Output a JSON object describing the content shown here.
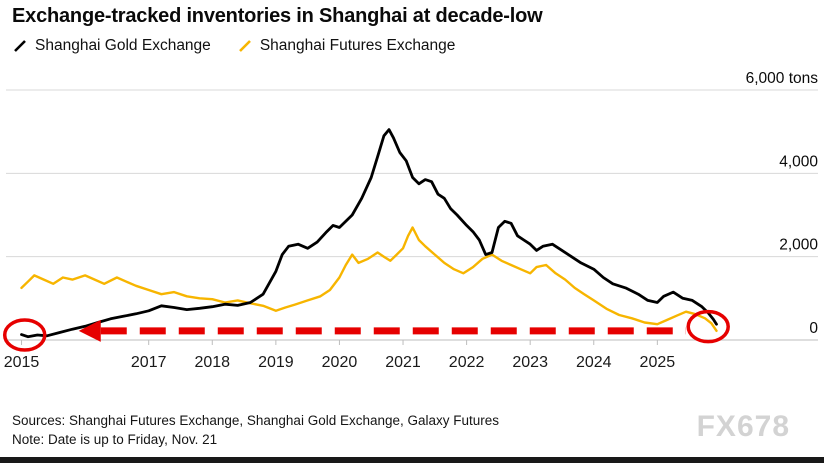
{
  "title": "Exchange-tracked inventories in Shanghai at decade-low",
  "legend": [
    {
      "label": "Shanghai Gold Exchange",
      "color": "#000000"
    },
    {
      "label": "Shanghai Futures Exchange",
      "color": "#f7b500"
    }
  ],
  "footer": {
    "sources": "Sources: Shanghai Futures Exchange, Shanghai Gold Exchange, Galaxy Futures",
    "note": "Note: Date is up to Friday, Nov. 21"
  },
  "watermark": "FX678",
  "chart_data": {
    "type": "line",
    "title": "Exchange-tracked inventories in Shanghai at decade-low",
    "xlabel": "",
    "ylabel": "tons",
    "grid": true,
    "legend_position": "top-left",
    "xlim": [
      2014.85,
      2026.3
    ],
    "ylim": [
      0,
      6000
    ],
    "y_ticks": [
      0,
      2000,
      4000,
      6000
    ],
    "y_tick_labels": [
      "0",
      "2,000",
      "4,000",
      "6,000 tons"
    ],
    "x_ticks": [
      2015,
      2017,
      2018,
      2019,
      2020,
      2021,
      2022,
      2023,
      2024,
      2025
    ],
    "series": [
      {
        "name": "Shanghai Futures Exchange",
        "color": "#f7b500",
        "width": 2.4,
        "points": [
          [
            2015,
            1250
          ],
          [
            2015.1,
            1400
          ],
          [
            2015.2,
            1550
          ],
          [
            2015.35,
            1450
          ],
          [
            2015.5,
            1350
          ],
          [
            2015.65,
            1500
          ],
          [
            2015.8,
            1450
          ],
          [
            2016,
            1550
          ],
          [
            2016.15,
            1450
          ],
          [
            2016.3,
            1350
          ],
          [
            2016.5,
            1500
          ],
          [
            2016.65,
            1400
          ],
          [
            2016.8,
            1300
          ],
          [
            2017,
            1200
          ],
          [
            2017.2,
            1100
          ],
          [
            2017.4,
            1150
          ],
          [
            2017.6,
            1050
          ],
          [
            2017.8,
            1000
          ],
          [
            2018,
            980
          ],
          [
            2018.2,
            900
          ],
          [
            2018.4,
            950
          ],
          [
            2018.6,
            880
          ],
          [
            2018.8,
            820
          ],
          [
            2019,
            700
          ],
          [
            2019.15,
            780
          ],
          [
            2019.3,
            850
          ],
          [
            2019.5,
            950
          ],
          [
            2019.7,
            1050
          ],
          [
            2019.85,
            1200
          ],
          [
            2020,
            1500
          ],
          [
            2020.1,
            1800
          ],
          [
            2020.2,
            2050
          ],
          [
            2020.3,
            1850
          ],
          [
            2020.45,
            1950
          ],
          [
            2020.6,
            2100
          ],
          [
            2020.7,
            2000
          ],
          [
            2020.8,
            1900
          ],
          [
            2020.9,
            2050
          ],
          [
            2021,
            2200
          ],
          [
            2021.08,
            2500
          ],
          [
            2021.15,
            2700
          ],
          [
            2021.25,
            2400
          ],
          [
            2021.35,
            2250
          ],
          [
            2021.5,
            2050
          ],
          [
            2021.65,
            1850
          ],
          [
            2021.8,
            1700
          ],
          [
            2021.95,
            1600
          ],
          [
            2022.1,
            1750
          ],
          [
            2022.25,
            1950
          ],
          [
            2022.4,
            2050
          ],
          [
            2022.55,
            1900
          ],
          [
            2022.7,
            1800
          ],
          [
            2022.85,
            1700
          ],
          [
            2023,
            1600
          ],
          [
            2023.1,
            1750
          ],
          [
            2023.25,
            1800
          ],
          [
            2023.4,
            1600
          ],
          [
            2023.55,
            1450
          ],
          [
            2023.7,
            1250
          ],
          [
            2023.85,
            1100
          ],
          [
            2024,
            950
          ],
          [
            2024.2,
            750
          ],
          [
            2024.4,
            600
          ],
          [
            2024.6,
            520
          ],
          [
            2024.8,
            420
          ],
          [
            2025,
            380
          ],
          [
            2025.15,
            480
          ],
          [
            2025.3,
            580
          ],
          [
            2025.45,
            680
          ],
          [
            2025.6,
            620
          ],
          [
            2025.75,
            520
          ],
          [
            2025.85,
            400
          ],
          [
            2025.93,
            220
          ]
        ]
      },
      {
        "name": "Shanghai Gold Exchange",
        "color": "#000000",
        "width": 2.8,
        "points": [
          [
            2015,
            130
          ],
          [
            2015.1,
            80
          ],
          [
            2015.25,
            120
          ],
          [
            2015.4,
            100
          ],
          [
            2015.6,
            180
          ],
          [
            2015.8,
            260
          ],
          [
            2016,
            330
          ],
          [
            2016.2,
            420
          ],
          [
            2016.4,
            510
          ],
          [
            2016.6,
            570
          ],
          [
            2016.8,
            630
          ],
          [
            2017,
            700
          ],
          [
            2017.2,
            820
          ],
          [
            2017.4,
            780
          ],
          [
            2017.6,
            730
          ],
          [
            2017.8,
            760
          ],
          [
            2018,
            800
          ],
          [
            2018.2,
            860
          ],
          [
            2018.4,
            830
          ],
          [
            2018.6,
            900
          ],
          [
            2018.8,
            1100
          ],
          [
            2019,
            1650
          ],
          [
            2019.1,
            2050
          ],
          [
            2019.2,
            2250
          ],
          [
            2019.35,
            2300
          ],
          [
            2019.5,
            2200
          ],
          [
            2019.65,
            2350
          ],
          [
            2019.8,
            2600
          ],
          [
            2019.9,
            2750
          ],
          [
            2020,
            2700
          ],
          [
            2020.1,
            2850
          ],
          [
            2020.2,
            3000
          ],
          [
            2020.35,
            3400
          ],
          [
            2020.5,
            3900
          ],
          [
            2020.6,
            4400
          ],
          [
            2020.7,
            4900
          ],
          [
            2020.78,
            5050
          ],
          [
            2020.85,
            4850
          ],
          [
            2020.95,
            4500
          ],
          [
            2021.05,
            4300
          ],
          [
            2021.15,
            3900
          ],
          [
            2021.25,
            3750
          ],
          [
            2021.35,
            3850
          ],
          [
            2021.45,
            3800
          ],
          [
            2021.55,
            3500
          ],
          [
            2021.65,
            3400
          ],
          [
            2021.75,
            3150
          ],
          [
            2021.85,
            3000
          ],
          [
            2022,
            2750
          ],
          [
            2022.1,
            2600
          ],
          [
            2022.2,
            2400
          ],
          [
            2022.3,
            2050
          ],
          [
            2022.4,
            2100
          ],
          [
            2022.5,
            2700
          ],
          [
            2022.6,
            2850
          ],
          [
            2022.7,
            2800
          ],
          [
            2022.8,
            2500
          ],
          [
            2022.9,
            2400
          ],
          [
            2023,
            2300
          ],
          [
            2023.1,
            2150
          ],
          [
            2023.2,
            2250
          ],
          [
            2023.35,
            2300
          ],
          [
            2023.5,
            2150
          ],
          [
            2023.65,
            2000
          ],
          [
            2023.8,
            1850
          ],
          [
            2024,
            1700
          ],
          [
            2024.15,
            1500
          ],
          [
            2024.3,
            1350
          ],
          [
            2024.5,
            1250
          ],
          [
            2024.7,
            1100
          ],
          [
            2024.85,
            950
          ],
          [
            2025,
            900
          ],
          [
            2025.1,
            1050
          ],
          [
            2025.25,
            1150
          ],
          [
            2025.4,
            1000
          ],
          [
            2025.55,
            950
          ],
          [
            2025.7,
            800
          ],
          [
            2025.8,
            650
          ],
          [
            2025.88,
            500
          ],
          [
            2025.93,
            380
          ]
        ]
      }
    ],
    "annotation": {
      "type": "dashed-arrow-left",
      "color": "#e60000",
      "arrow_y": 220,
      "arrow_x_from": 2025.45,
      "arrow_x_to": 2015.9,
      "circles": [
        {
          "x": 2015.05,
          "y": 120
        },
        {
          "x": 2025.8,
          "y": 320
        }
      ]
    }
  }
}
